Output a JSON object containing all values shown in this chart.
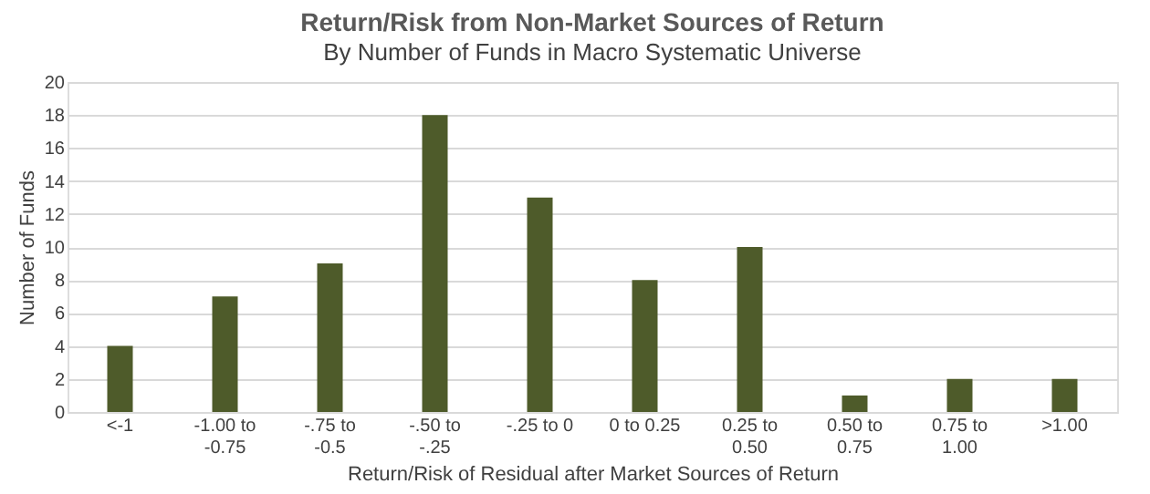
{
  "chart_data": {
    "type": "bar",
    "title": "Return/Risk from Non-Market Sources of Return",
    "subtitle": "By Number of Funds in Macro Systematic Universe",
    "categories": [
      "<-1",
      "-1.00 to -0.75",
      "-.75 to -0.5",
      "-.50 to -.25",
      "-.25 to 0",
      "0 to 0.25",
      "0.25 to 0.50",
      "0.50 to 0.75",
      "0.75 to 1.00",
      ">1.00"
    ],
    "values": [
      4,
      7,
      9,
      18,
      13,
      8,
      10,
      1,
      2,
      2
    ],
    "color": "#4e5b2a",
    "xlabel": "Return/Risk of Residual after Market Sources of Return",
    "ylabel": "Number of Funds",
    "ylim": [
      0,
      20
    ],
    "yticks": [
      0,
      2,
      4,
      6,
      8,
      10,
      12,
      14,
      16,
      18,
      20
    ],
    "grid": "y"
  }
}
